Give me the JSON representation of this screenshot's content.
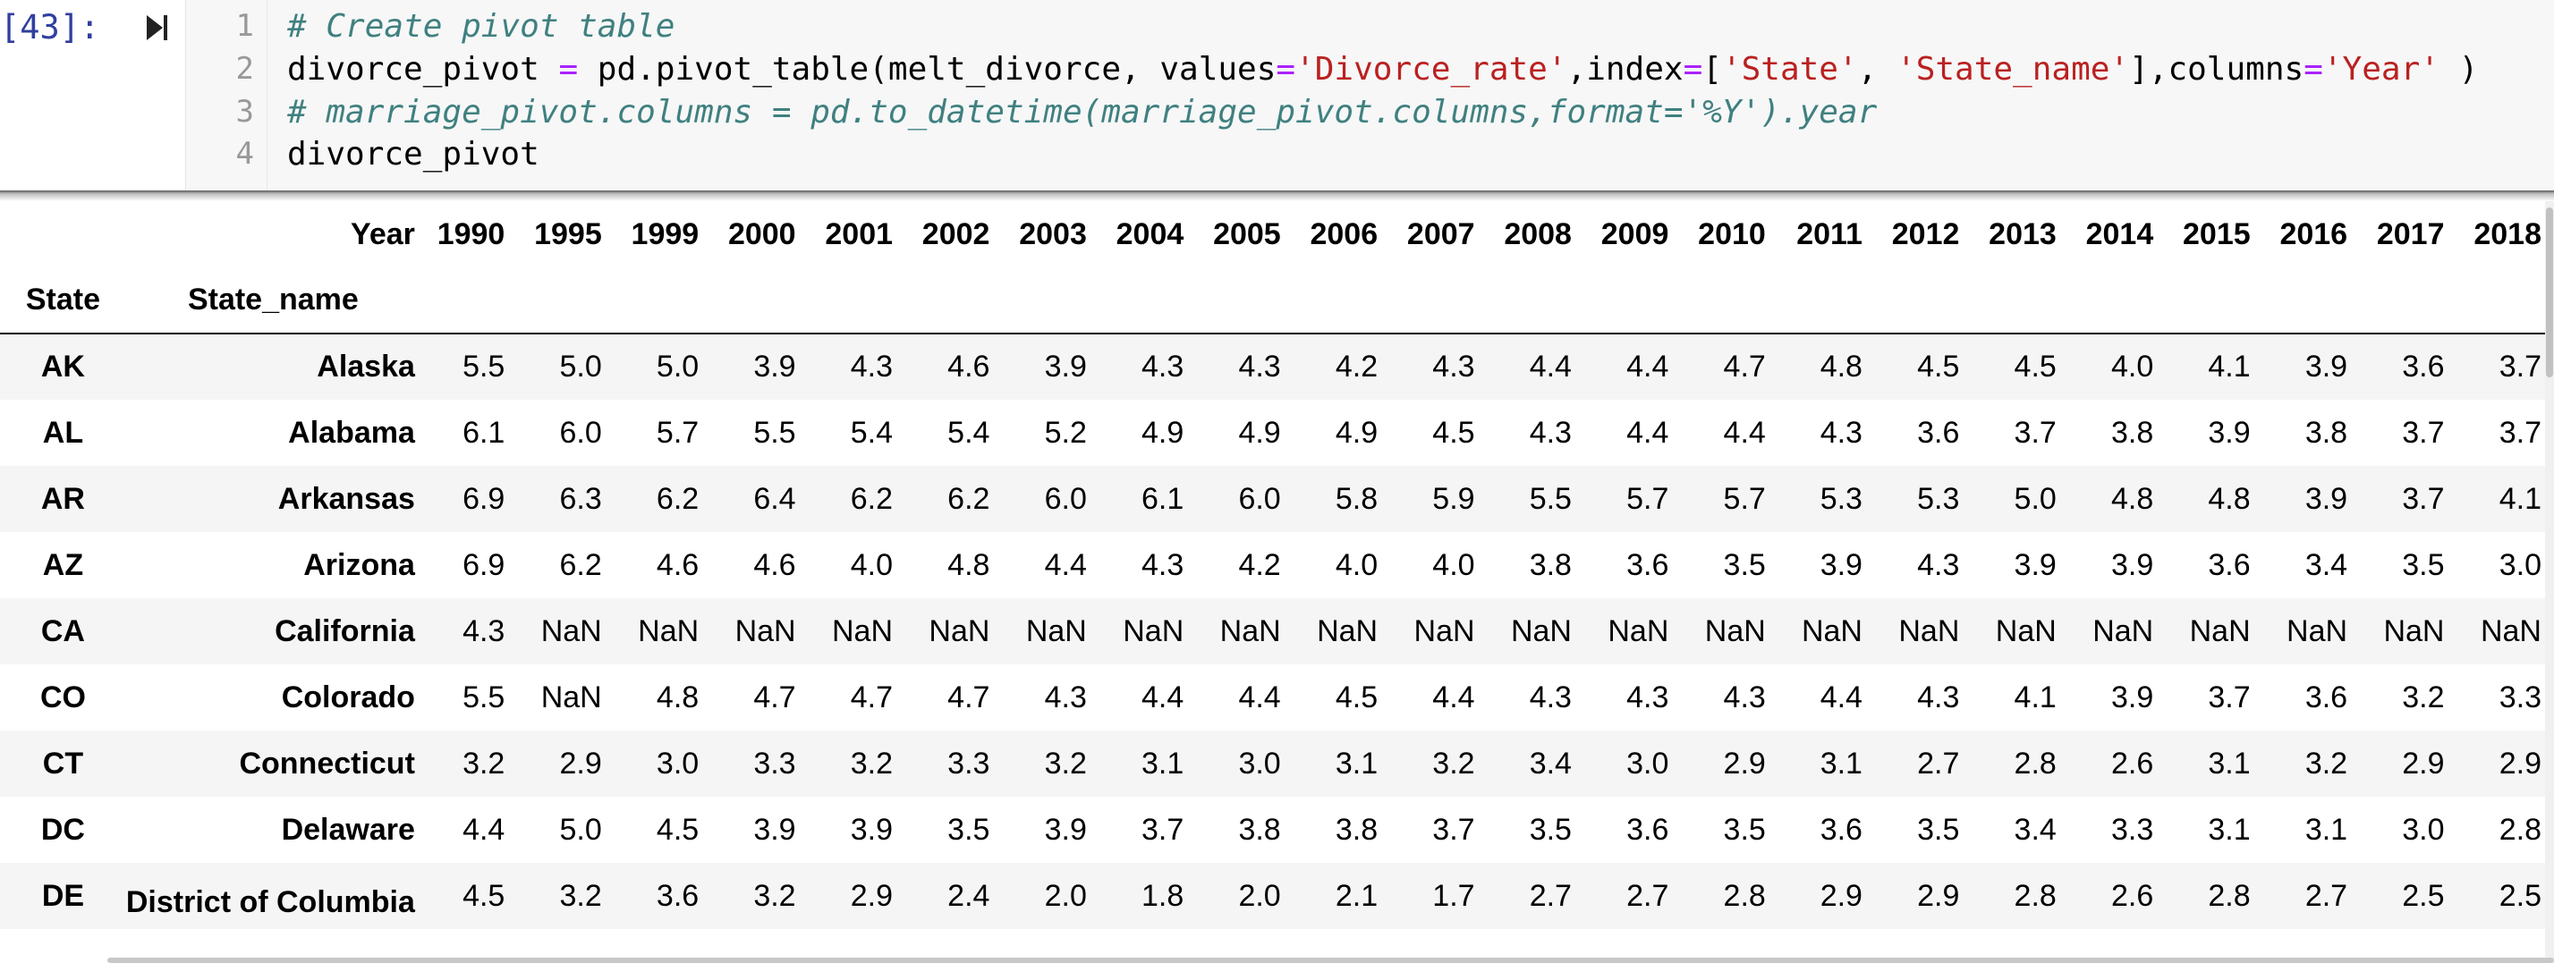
{
  "cell": {
    "prompt": "[43]:",
    "line_numbers": [
      "1",
      "2",
      "3",
      "4"
    ],
    "code": {
      "line1": "# Create pivot table",
      "line2": {
        "p1": "divorce_pivot ",
        "p2": "=",
        "p3": " pd.pivot_table(melt_divorce, values",
        "p4": "=",
        "p5": "'Divorce_rate'",
        "p6": ",index",
        "p7": "=",
        "p8": "[",
        "p9": "'State'",
        "p10": ", ",
        "p11": "'State_name'",
        "p12": "],columns",
        "p13": "=",
        "p14": "'Year'",
        "p15": " )"
      },
      "line3": "# marriage_pivot.columns = pd.to_datetime(marriage_pivot.columns,format='%Y').year",
      "line4": "divorce_pivot"
    }
  },
  "table": {
    "columns_name": "Year",
    "index_names": [
      "State",
      "State_name"
    ],
    "years": [
      "1990",
      "1995",
      "1999",
      "2000",
      "2001",
      "2002",
      "2003",
      "2004",
      "2005",
      "2006",
      "2007",
      "2008",
      "2009",
      "2010",
      "2011",
      "2012",
      "2013",
      "2014",
      "2015",
      "2016",
      "2017",
      "2018"
    ],
    "rows": [
      {
        "state": "AK",
        "name": "Alaska",
        "values": [
          "5.5",
          "5.0",
          "5.0",
          "3.9",
          "4.3",
          "4.6",
          "3.9",
          "4.3",
          "4.3",
          "4.2",
          "4.3",
          "4.4",
          "4.4",
          "4.7",
          "4.8",
          "4.5",
          "4.5",
          "4.0",
          "4.1",
          "3.9",
          "3.6",
          "3.7"
        ]
      },
      {
        "state": "AL",
        "name": "Alabama",
        "values": [
          "6.1",
          "6.0",
          "5.7",
          "5.5",
          "5.4",
          "5.4",
          "5.2",
          "4.9",
          "4.9",
          "4.9",
          "4.5",
          "4.3",
          "4.4",
          "4.4",
          "4.3",
          "3.6",
          "3.7",
          "3.8",
          "3.9",
          "3.8",
          "3.7",
          "3.7"
        ]
      },
      {
        "state": "AR",
        "name": "Arkansas",
        "values": [
          "6.9",
          "6.3",
          "6.2",
          "6.4",
          "6.2",
          "6.2",
          "6.0",
          "6.1",
          "6.0",
          "5.8",
          "5.9",
          "5.5",
          "5.7",
          "5.7",
          "5.3",
          "5.3",
          "5.0",
          "4.8",
          "4.8",
          "3.9",
          "3.7",
          "4.1"
        ]
      },
      {
        "state": "AZ",
        "name": "Arizona",
        "values": [
          "6.9",
          "6.2",
          "4.6",
          "4.6",
          "4.0",
          "4.8",
          "4.4",
          "4.3",
          "4.2",
          "4.0",
          "4.0",
          "3.8",
          "3.6",
          "3.5",
          "3.9",
          "4.3",
          "3.9",
          "3.9",
          "3.6",
          "3.4",
          "3.5",
          "3.0"
        ]
      },
      {
        "state": "CA",
        "name": "California",
        "values": [
          "4.3",
          "NaN",
          "NaN",
          "NaN",
          "NaN",
          "NaN",
          "NaN",
          "NaN",
          "NaN",
          "NaN",
          "NaN",
          "NaN",
          "NaN",
          "NaN",
          "NaN",
          "NaN",
          "NaN",
          "NaN",
          "NaN",
          "NaN",
          "NaN",
          "NaN"
        ]
      },
      {
        "state": "CO",
        "name": "Colorado",
        "values": [
          "5.5",
          "NaN",
          "4.8",
          "4.7",
          "4.7",
          "4.7",
          "4.3",
          "4.4",
          "4.4",
          "4.5",
          "4.4",
          "4.3",
          "4.3",
          "4.3",
          "4.4",
          "4.3",
          "4.1",
          "3.9",
          "3.7",
          "3.6",
          "3.2",
          "3.3"
        ]
      },
      {
        "state": "CT",
        "name": "Connecticut",
        "values": [
          "3.2",
          "2.9",
          "3.0",
          "3.3",
          "3.2",
          "3.3",
          "3.2",
          "3.1",
          "3.0",
          "3.1",
          "3.2",
          "3.4",
          "3.0",
          "2.9",
          "3.1",
          "2.7",
          "2.8",
          "2.6",
          "3.1",
          "3.2",
          "2.9",
          "2.9"
        ]
      },
      {
        "state": "DC",
        "name": "Delaware",
        "values": [
          "4.4",
          "5.0",
          "4.5",
          "3.9",
          "3.9",
          "3.5",
          "3.9",
          "3.7",
          "3.8",
          "3.8",
          "3.7",
          "3.5",
          "3.6",
          "3.5",
          "3.6",
          "3.5",
          "3.4",
          "3.3",
          "3.1",
          "3.1",
          "3.0",
          "2.8"
        ]
      },
      {
        "state": "DE",
        "name": "District of Columbia",
        "values": [
          "4.5",
          "3.2",
          "3.6",
          "3.2",
          "2.9",
          "2.4",
          "2.0",
          "1.8",
          "2.0",
          "2.1",
          "1.7",
          "2.7",
          "2.7",
          "2.8",
          "2.9",
          "2.9",
          "2.8",
          "2.6",
          "2.8",
          "2.7",
          "2.5",
          "2.5"
        ]
      }
    ]
  }
}
